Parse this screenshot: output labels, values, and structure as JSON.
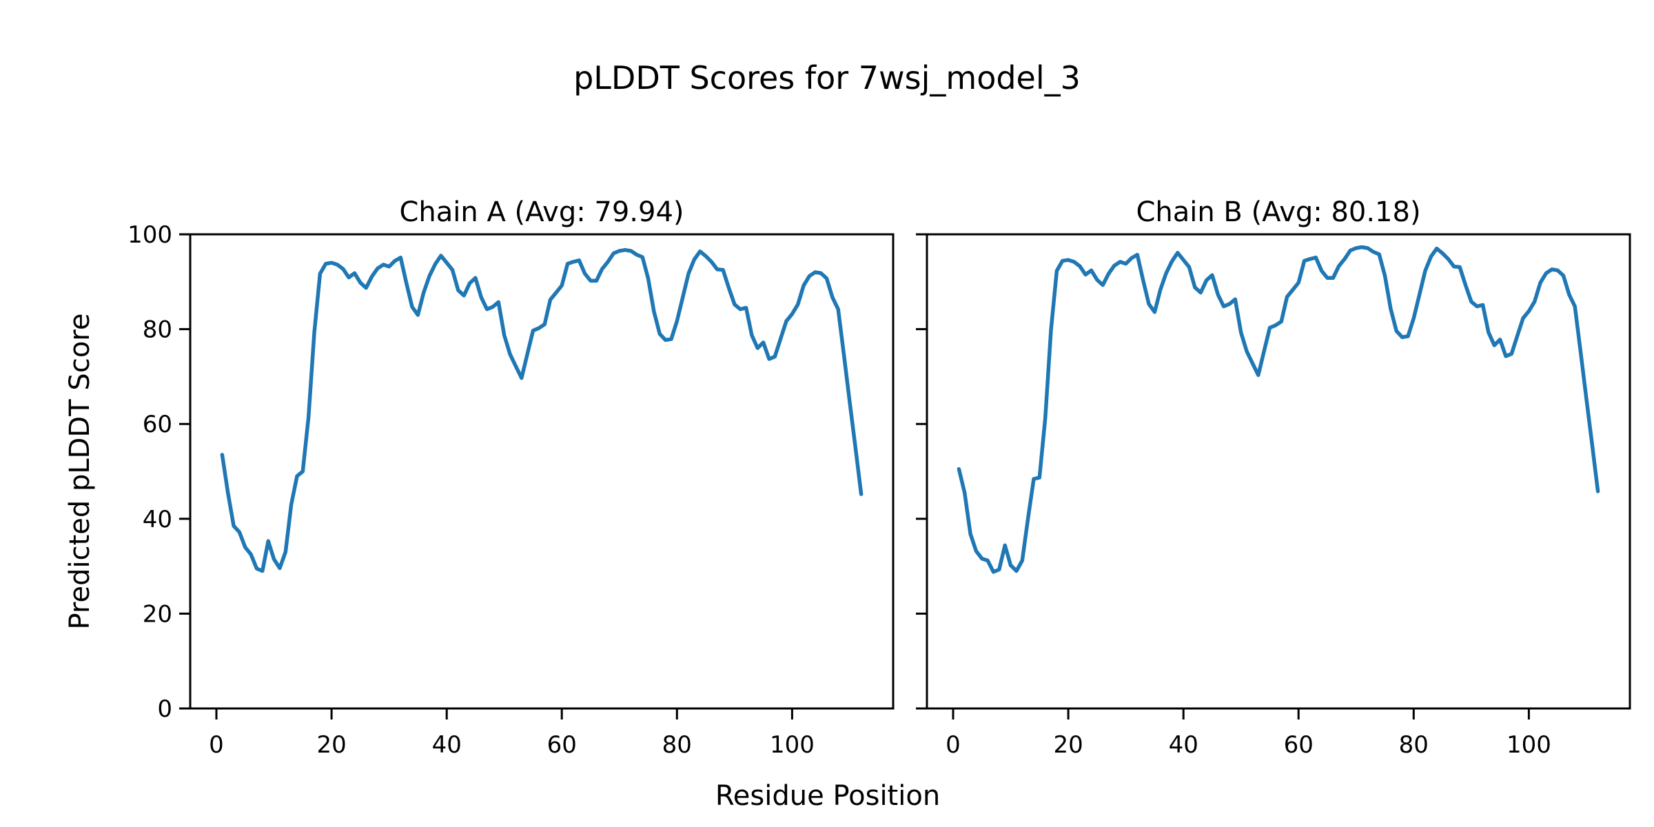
{
  "figure": {
    "suptitle": "pLDDT Scores for 7wsj_model_3",
    "xlabel": "Residue Position",
    "ylabel": "Predicted pLDDT Score",
    "background_color": "#ffffff",
    "text_color": "#000000"
  },
  "chart_data": [
    {
      "type": "line",
      "title": "Chain A (Avg: 79.94)",
      "chain": "A",
      "average_plddt": 79.94,
      "line_color": "#1f77b4",
      "grid": false,
      "legend": "none",
      "x_start": 1,
      "xlim": [
        -4.55,
        117.55
      ],
      "ylim": [
        0,
        100
      ],
      "xticks": [
        0,
        20,
        40,
        60,
        80,
        100
      ],
      "yticks": [
        0,
        20,
        40,
        60,
        80,
        100
      ],
      "show_yticklabels": true,
      "values": [
        53.5,
        45.5,
        38.5,
        37.2,
        34.0,
        32.5,
        29.5,
        29.0,
        35.3,
        31.5,
        29.6,
        33.0,
        43.0,
        49.0,
        50.0,
        61.5,
        79.2,
        91.7,
        93.8,
        94.0,
        93.6,
        92.7,
        90.9,
        91.8,
        89.8,
        88.7,
        91.1,
        92.8,
        93.6,
        93.2,
        94.4,
        95.1,
        89.7,
        84.7,
        83.0,
        87.7,
        91.2,
        93.7,
        95.5,
        94.0,
        92.5,
        88.2,
        87.1,
        89.7,
        90.8,
        86.7,
        84.2,
        84.7,
        85.7,
        78.7,
        74.7,
        72.2,
        69.7,
        74.7,
        79.7,
        80.2,
        81.0,
        86.2,
        87.7,
        89.2,
        93.8,
        94.2,
        94.5,
        91.7,
        90.2,
        90.2,
        92.7,
        94.2,
        96.0,
        96.5,
        96.7,
        96.5,
        95.7,
        95.2,
        90.7,
        83.7,
        79.0,
        77.7,
        77.9,
        81.7,
        86.7,
        91.7,
        94.7,
        96.4,
        95.4,
        94.2,
        92.6,
        92.5,
        88.7,
        85.2,
        84.2,
        84.5,
        78.7,
        76.0,
        77.2,
        73.7,
        74.2,
        78.0,
        81.7,
        83.2,
        85.2,
        89.2,
        91.2,
        92.0,
        91.8,
        90.7,
        86.7,
        84.2,
        74.5,
        64.7,
        55.0,
        45.2
      ]
    },
    {
      "type": "line",
      "title": "Chain B (Avg: 80.18)",
      "chain": "B",
      "average_plddt": 80.18,
      "line_color": "#1f77b4",
      "grid": false,
      "legend": "none",
      "x_start": 1,
      "xlim": [
        -4.55,
        117.55
      ],
      "ylim": [
        0,
        100
      ],
      "xticks": [
        0,
        20,
        40,
        60,
        80,
        100
      ],
      "yticks": [
        0,
        20,
        40,
        60,
        80,
        100
      ],
      "show_yticklabels": false,
      "values": [
        50.5,
        45.5,
        36.8,
        33.2,
        31.6,
        31.2,
        28.8,
        29.3,
        34.4,
        30.2,
        29.0,
        31.2,
        40.0,
        48.4,
        48.7,
        61.2,
        79.8,
        92.3,
        94.4,
        94.6,
        94.2,
        93.3,
        91.5,
        92.4,
        90.4,
        89.3,
        91.7,
        93.4,
        94.2,
        93.8,
        95.0,
        95.7,
        90.3,
        85.3,
        83.6,
        88.3,
        91.8,
        94.3,
        96.1,
        94.6,
        93.1,
        88.8,
        87.7,
        90.3,
        91.4,
        87.3,
        84.8,
        85.3,
        86.3,
        79.3,
        75.3,
        72.8,
        70.3,
        75.3,
        80.3,
        80.8,
        81.6,
        86.8,
        88.3,
        89.8,
        94.4,
        94.8,
        95.1,
        92.3,
        90.8,
        90.8,
        93.3,
        94.8,
        96.6,
        97.1,
        97.3,
        97.1,
        96.3,
        95.8,
        91.3,
        84.3,
        79.6,
        78.3,
        78.5,
        82.3,
        87.3,
        92.3,
        95.3,
        97.0,
        96.0,
        94.8,
        93.2,
        93.1,
        89.3,
        85.8,
        84.8,
        85.1,
        79.3,
        76.6,
        77.8,
        74.3,
        74.8,
        78.6,
        82.3,
        83.8,
        85.8,
        89.8,
        91.8,
        92.6,
        92.4,
        91.3,
        87.3,
        84.8,
        75.1,
        65.3,
        55.6,
        45.8
      ]
    }
  ]
}
